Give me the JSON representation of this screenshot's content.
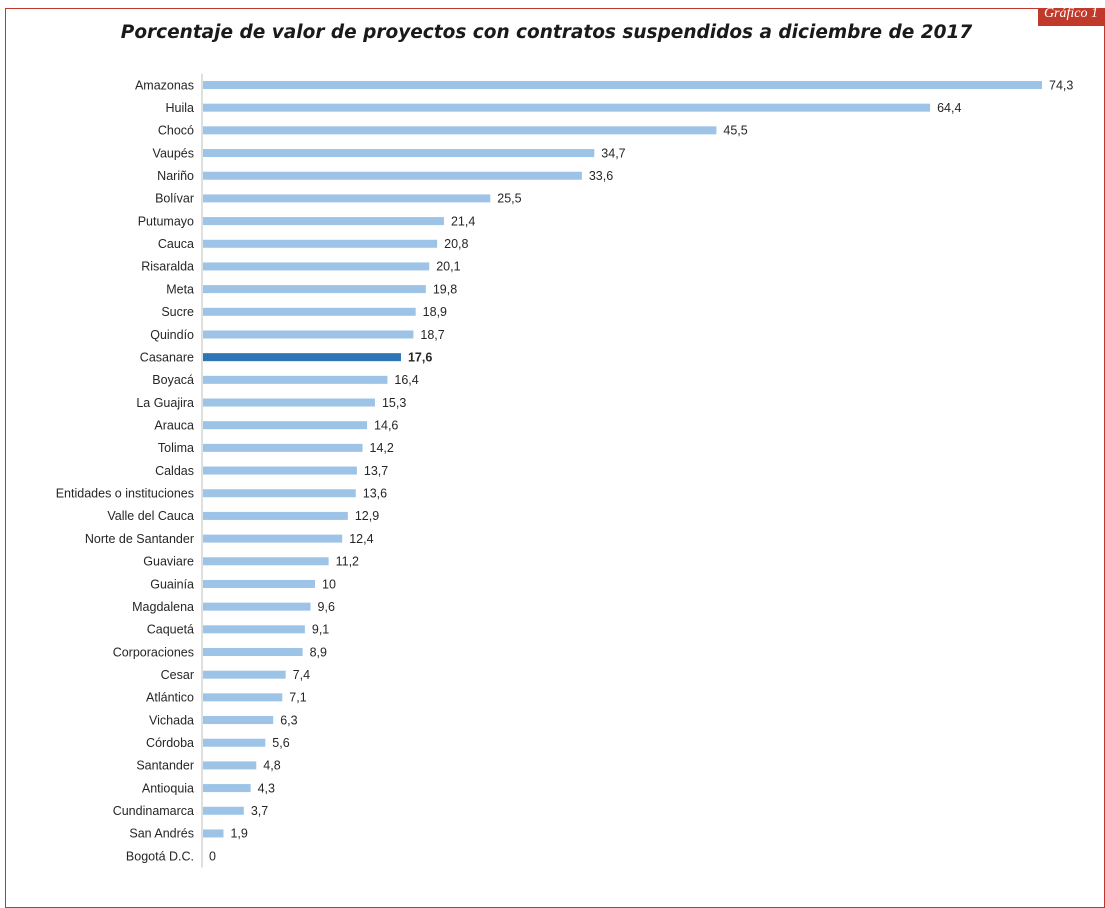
{
  "badge_text": "Gráfico 1",
  "chart_data": {
    "type": "bar",
    "orientation": "horizontal",
    "title": "Porcentaje de valor de proyectos con contratos suspendidos a diciembre de 2017",
    "categories": [
      "Amazonas",
      "Huila",
      "Chocó",
      "Vaupés",
      "Nariño",
      "Bolívar",
      "Putumayo",
      "Cauca",
      "Risaralda",
      "Meta",
      "Sucre",
      "Quindío",
      "Casanare",
      "Boyacá",
      "La Guajira",
      "Arauca",
      "Tolima",
      "Caldas",
      "Entidades o instituciones",
      "Valle del Cauca",
      "Norte de Santander",
      "Guaviare",
      "Guainía",
      "Magdalena",
      "Caquetá",
      "Corporaciones",
      "Cesar",
      "Atlántico",
      "Vichada",
      "Córdoba",
      "Santander",
      "Antioquia",
      "Cundinamarca",
      "San Andrés",
      "Bogotá D.C."
    ],
    "values": [
      74.3,
      64.4,
      45.5,
      34.7,
      33.6,
      25.5,
      21.4,
      20.8,
      20.1,
      19.8,
      18.9,
      18.7,
      17.6,
      16.4,
      15.3,
      14.6,
      14.2,
      13.7,
      13.6,
      12.9,
      12.4,
      11.2,
      10,
      9.6,
      9.1,
      8.9,
      7.4,
      7.1,
      6.3,
      5.6,
      4.8,
      4.3,
      3.7,
      1.9,
      0
    ],
    "value_labels": [
      "74,3",
      "64,4",
      "45,5",
      "34,7",
      "33,6",
      "25,5",
      "21,4",
      "20,8",
      "20,1",
      "19,8",
      "18,9",
      "18,7",
      "17,6",
      "16,4",
      "15,3",
      "14,6",
      "14,2",
      "13,7",
      "13,6",
      "12,9",
      "12,4",
      "11,2",
      "10",
      "9,6",
      "9,1",
      "8,9",
      "7,4",
      "7,1",
      "6,3",
      "5,6",
      "4,8",
      "4,3",
      "3,7",
      "1,9",
      "0"
    ],
    "highlight_category": "Casanare",
    "xlim": [
      0,
      74.3
    ],
    "grid": false,
    "legend": "none",
    "colors": {
      "bar": "#9dc3e6",
      "highlight_bar": "#2e75b6",
      "axis": "#bfbfbf",
      "frame": "#c0392b"
    }
  }
}
